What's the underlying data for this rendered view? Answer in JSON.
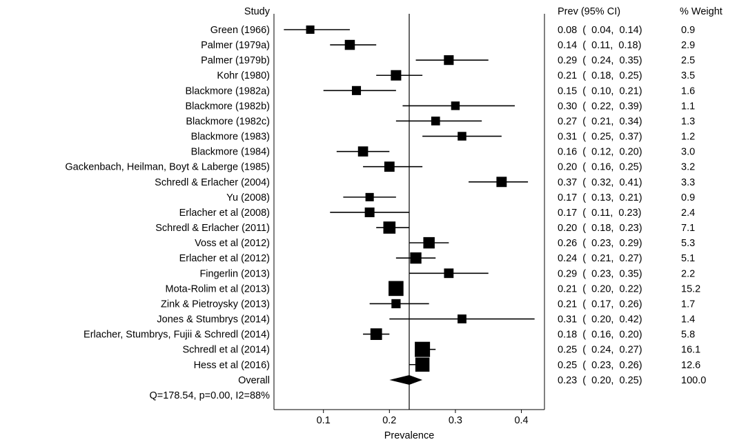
{
  "chart_data": {
    "type": "forest",
    "xlabel": "Prevalence",
    "xlim": [
      0.025,
      0.435
    ],
    "xticks": [
      0.1,
      0.2,
      0.3,
      0.4
    ],
    "xtick_labels": [
      "0.1",
      "0.2",
      "0.3",
      "0.4"
    ],
    "reference_line": 0.23,
    "columns": {
      "study": "Study",
      "estimate": "Prev (95% CI)",
      "weight": "% Weight"
    },
    "studies": [
      {
        "label": "Green (1966)",
        "prev": 0.08,
        "lo": 0.04,
        "hi": 0.14,
        "weight": 0.9,
        "text": "0.08  (  0.04,  0.14)",
        "weight_text": "0.9"
      },
      {
        "label": "Palmer (1979a)",
        "prev": 0.14,
        "lo": 0.11,
        "hi": 0.18,
        "weight": 2.9,
        "text": "0.14  (  0.11,  0.18)",
        "weight_text": "2.9"
      },
      {
        "label": "Palmer (1979b)",
        "prev": 0.29,
        "lo": 0.24,
        "hi": 0.35,
        "weight": 2.5,
        "text": "0.29  (  0.24,  0.35)",
        "weight_text": "2.5"
      },
      {
        "label": "Kohr (1980)",
        "prev": 0.21,
        "lo": 0.18,
        "hi": 0.25,
        "weight": 3.5,
        "text": "0.21  (  0.18,  0.25)",
        "weight_text": "3.5"
      },
      {
        "label": "Blackmore (1982a)",
        "prev": 0.15,
        "lo": 0.1,
        "hi": 0.21,
        "weight": 1.6,
        "text": "0.15  (  0.10,  0.21)",
        "weight_text": "1.6"
      },
      {
        "label": "Blackmore (1982b)",
        "prev": 0.3,
        "lo": 0.22,
        "hi": 0.39,
        "weight": 1.1,
        "text": "0.30  (  0.22,  0.39)",
        "weight_text": "1.1"
      },
      {
        "label": "Blackmore (1982c)",
        "prev": 0.27,
        "lo": 0.21,
        "hi": 0.34,
        "weight": 1.3,
        "text": "0.27  (  0.21,  0.34)",
        "weight_text": "1.3"
      },
      {
        "label": "Blackmore (1983)",
        "prev": 0.31,
        "lo": 0.25,
        "hi": 0.37,
        "weight": 1.2,
        "text": "0.31  (  0.25,  0.37)",
        "weight_text": "1.2"
      },
      {
        "label": "Blackmore (1984)",
        "prev": 0.16,
        "lo": 0.12,
        "hi": 0.2,
        "weight": 3.0,
        "text": "0.16  (  0.12,  0.20)",
        "weight_text": "3.0"
      },
      {
        "label": "Gackenbach, Heilman, Boyt & Laberge (1985)",
        "prev": 0.2,
        "lo": 0.16,
        "hi": 0.25,
        "weight": 3.2,
        "text": "0.20  (  0.16,  0.25)",
        "weight_text": "3.2"
      },
      {
        "label": "Schredl & Erlacher (2004)",
        "prev": 0.37,
        "lo": 0.32,
        "hi": 0.41,
        "weight": 3.3,
        "text": "0.37  (  0.32,  0.41)",
        "weight_text": "3.3"
      },
      {
        "label": "Yu (2008)",
        "prev": 0.17,
        "lo": 0.13,
        "hi": 0.21,
        "weight": 0.9,
        "text": "0.17  (  0.13,  0.21)",
        "weight_text": "0.9"
      },
      {
        "label": "Erlacher et al (2008)",
        "prev": 0.17,
        "lo": 0.11,
        "hi": 0.23,
        "weight": 2.4,
        "text": "0.17  (  0.11,  0.23)",
        "weight_text": "2.4"
      },
      {
        "label": "Schredl & Erlacher (2011)",
        "prev": 0.2,
        "lo": 0.18,
        "hi": 0.23,
        "weight": 7.1,
        "text": "0.20  (  0.18,  0.23)",
        "weight_text": "7.1"
      },
      {
        "label": "Voss et al (2012)",
        "prev": 0.26,
        "lo": 0.23,
        "hi": 0.29,
        "weight": 5.3,
        "text": "0.26  (  0.23,  0.29)",
        "weight_text": "5.3"
      },
      {
        "label": "Erlacher et al (2012)",
        "prev": 0.24,
        "lo": 0.21,
        "hi": 0.27,
        "weight": 5.1,
        "text": "0.24  (  0.21,  0.27)",
        "weight_text": "5.1"
      },
      {
        "label": "Fingerlin (2013)",
        "prev": 0.29,
        "lo": 0.23,
        "hi": 0.35,
        "weight": 2.2,
        "text": "0.29  (  0.23,  0.35)",
        "weight_text": "2.2"
      },
      {
        "label": "Mota-Rolim et al (2013)",
        "prev": 0.21,
        "lo": 0.2,
        "hi": 0.22,
        "weight": 15.2,
        "text": "0.21  (  0.20,  0.22)",
        "weight_text": "15.2"
      },
      {
        "label": "Zink & Pietroysky (2013)",
        "prev": 0.21,
        "lo": 0.17,
        "hi": 0.26,
        "weight": 1.7,
        "text": "0.21  (  0.17,  0.26)",
        "weight_text": "1.7"
      },
      {
        "label": "Jones & Stumbrys (2014)",
        "prev": 0.31,
        "lo": 0.2,
        "hi": 0.42,
        "weight": 1.4,
        "text": "0.31  (  0.20,  0.42)",
        "weight_text": "1.4"
      },
      {
        "label": "Erlacher, Stumbrys, Fujii & Schredl (2014)",
        "prev": 0.18,
        "lo": 0.16,
        "hi": 0.2,
        "weight": 5.8,
        "text": "0.18  (  0.16,  0.20)",
        "weight_text": "5.8"
      },
      {
        "label": "Schredl et al (2014)",
        "prev": 0.25,
        "lo": 0.24,
        "hi": 0.27,
        "weight": 16.1,
        "text": "0.25  (  0.24,  0.27)",
        "weight_text": "16.1"
      },
      {
        "label": "Hess et al (2016)",
        "prev": 0.25,
        "lo": 0.23,
        "hi": 0.26,
        "weight": 12.6,
        "text": "0.25  (  0.23,  0.26)",
        "weight_text": "12.6"
      }
    ],
    "overall": {
      "label": "Overall",
      "prev": 0.23,
      "lo": 0.2,
      "hi": 0.25,
      "weight": 100.0,
      "text": "0.23  (  0.20,  0.25)",
      "weight_text": "100.0"
    },
    "heterogeneity": "Q=178.54, p=0.00, I2=88%"
  }
}
